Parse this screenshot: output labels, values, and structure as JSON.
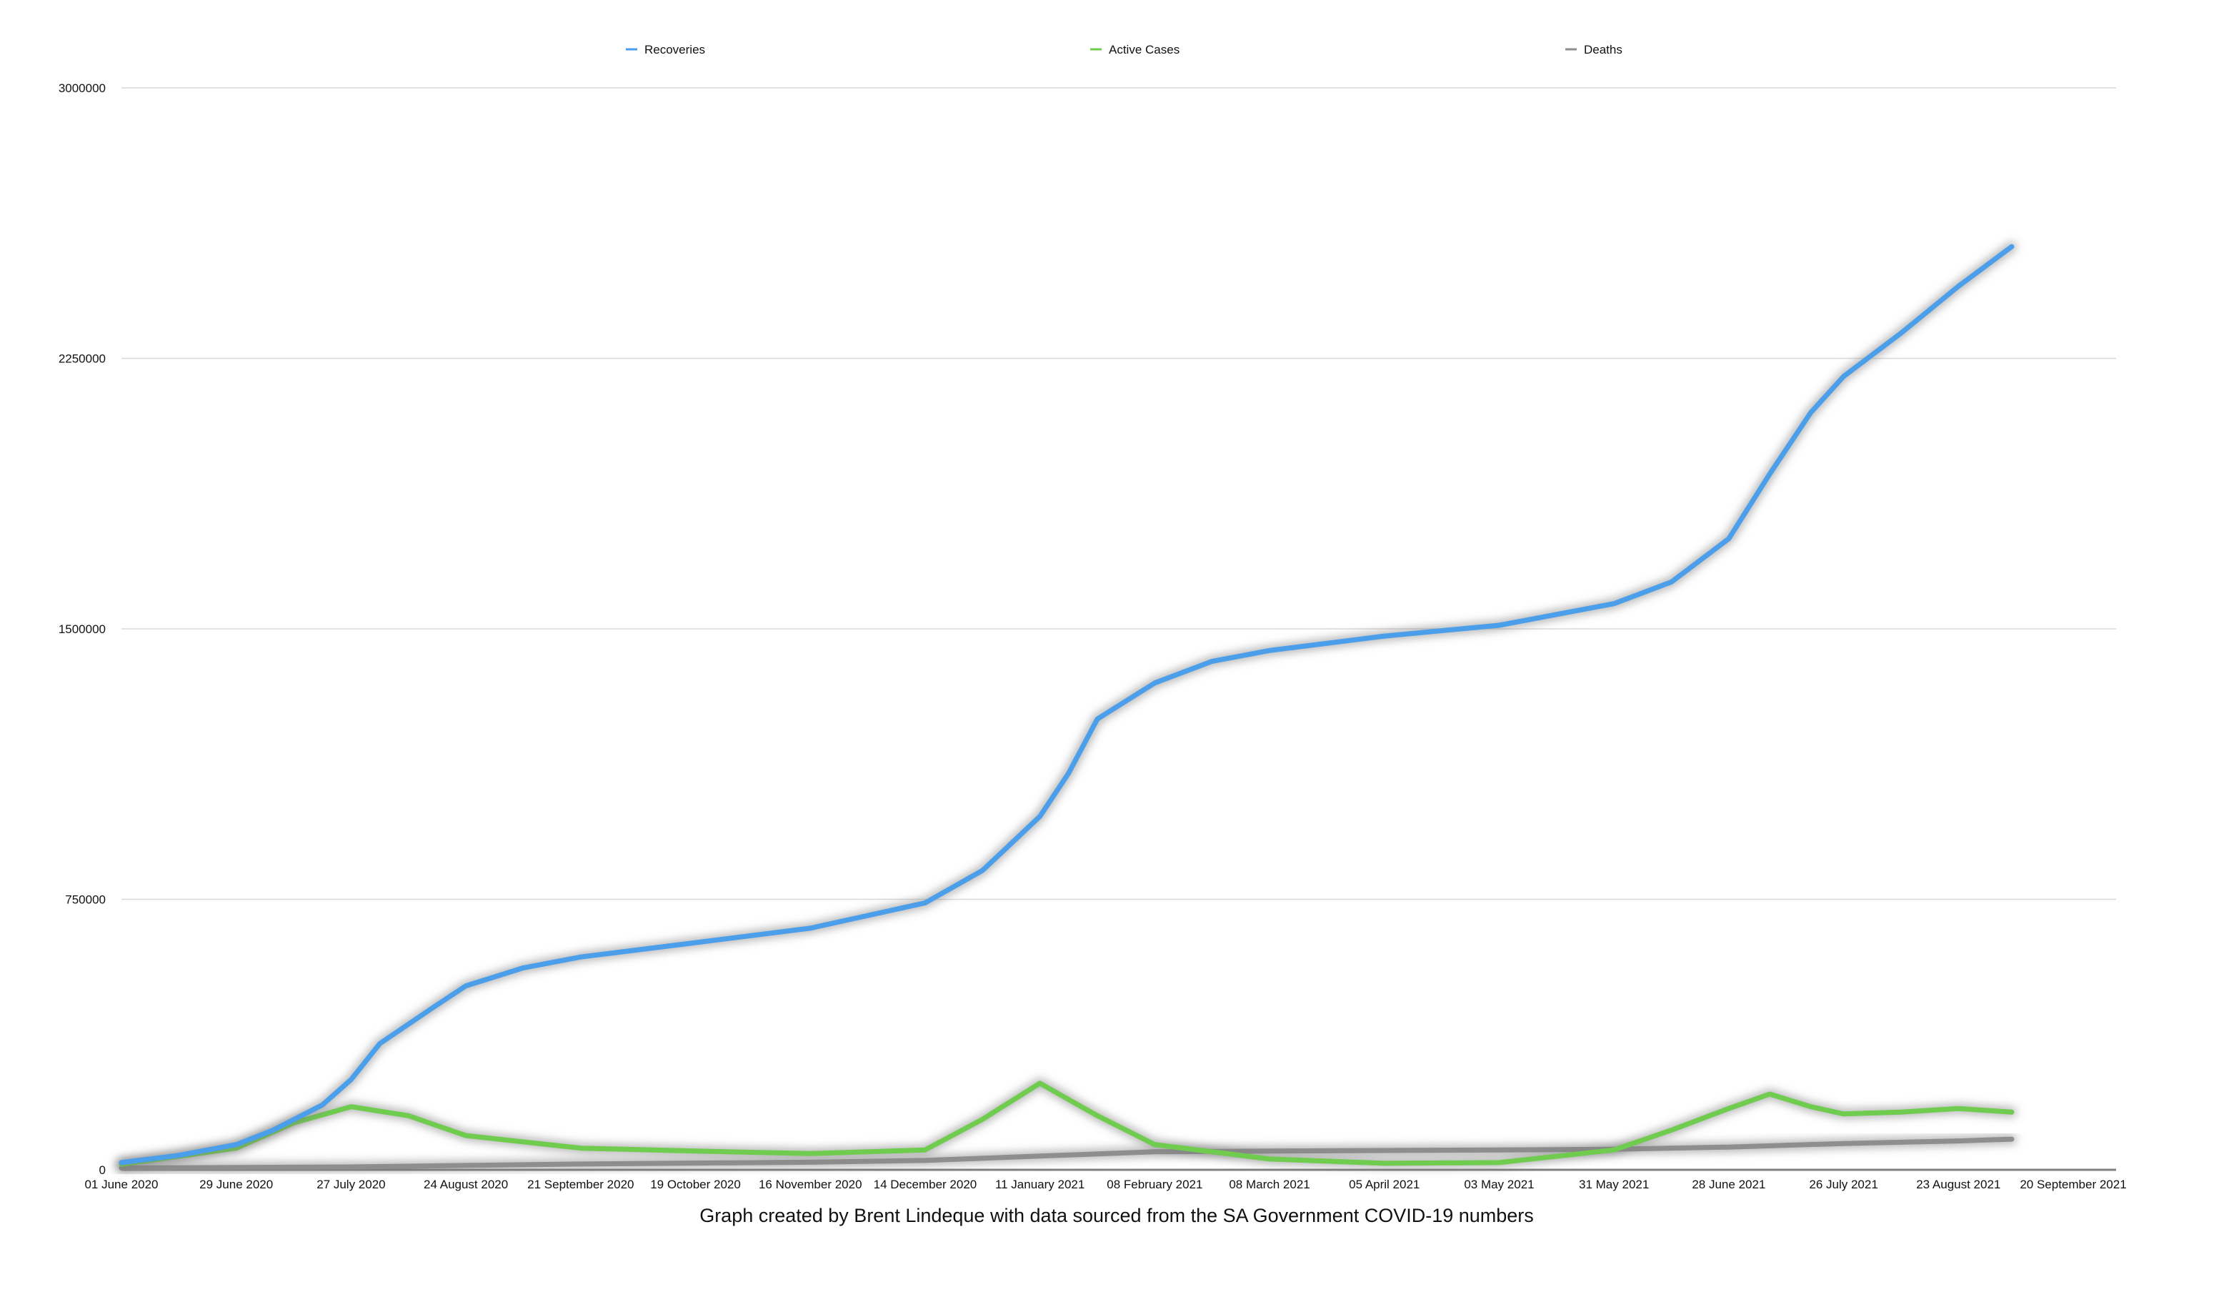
{
  "chart_data": {
    "type": "line",
    "title": "",
    "xlabel": "",
    "ylabel": "",
    "caption": "Graph created by Brent Lindeque with data sourced from the SA Government COVID-19 numbers",
    "ylim": [
      0,
      3000000
    ],
    "yticks": [
      "0",
      "750000",
      "1500000",
      "2250000",
      "3000000"
    ],
    "y_tick_values": [
      0,
      750000,
      1500000,
      2250000,
      3000000
    ],
    "xlim": [
      "2020-06-01",
      "2021-09-20"
    ],
    "x_tick_labels": [
      "01 June 2020",
      "29 June 2020",
      "27 July 2020",
      "24 August 2020",
      "21 September 2020",
      "19 October 2020",
      "16 November 2020",
      "14 December 2020",
      "11 January 2021",
      "08 February 2021",
      "08 March 2021",
      "05 April 2021",
      "03 May 2021",
      "31 May 2021",
      "28 June 2021",
      "26 July 2021",
      "23 August 2021",
      "20 September 2021"
    ],
    "x_tick_dates": [
      "2020-06-01",
      "2020-06-29",
      "2020-07-27",
      "2020-08-24",
      "2020-09-21",
      "2020-10-19",
      "2020-11-16",
      "2020-12-14",
      "2021-01-11",
      "2021-02-08",
      "2021-03-08",
      "2021-04-05",
      "2021-05-03",
      "2021-05-31",
      "2021-06-28",
      "2021-07-26",
      "2021-08-23",
      "2021-09-20"
    ],
    "grid": true,
    "legend_position": "top",
    "series": [
      {
        "name": "Recoveries",
        "color": "#4a9eea",
        "points": [
          [
            "2020-06-01",
            20000
          ],
          [
            "2020-06-15",
            40000
          ],
          [
            "2020-06-29",
            70000
          ],
          [
            "2020-07-08",
            110000
          ],
          [
            "2020-07-20",
            180000
          ],
          [
            "2020-07-27",
            250000
          ],
          [
            "2020-08-03",
            350000
          ],
          [
            "2020-08-16",
            450000
          ],
          [
            "2020-08-24",
            510000
          ],
          [
            "2020-09-07",
            560000
          ],
          [
            "2020-09-21",
            590000
          ],
          [
            "2020-10-19",
            630000
          ],
          [
            "2020-11-16",
            670000
          ],
          [
            "2020-12-14",
            740000
          ],
          [
            "2020-12-28",
            830000
          ],
          [
            "2021-01-11",
            980000
          ],
          [
            "2021-01-18",
            1100000
          ],
          [
            "2021-01-25",
            1250000
          ],
          [
            "2021-02-08",
            1350000
          ],
          [
            "2021-02-22",
            1410000
          ],
          [
            "2021-03-08",
            1440000
          ],
          [
            "2021-04-05",
            1480000
          ],
          [
            "2021-05-03",
            1510000
          ],
          [
            "2021-05-31",
            1570000
          ],
          [
            "2021-06-14",
            1630000
          ],
          [
            "2021-06-28",
            1750000
          ],
          [
            "2021-07-08",
            1930000
          ],
          [
            "2021-07-18",
            2100000
          ],
          [
            "2021-07-26",
            2200000
          ],
          [
            "2021-08-09",
            2320000
          ],
          [
            "2021-08-23",
            2450000
          ],
          [
            "2021-09-05",
            2560000
          ]
        ]
      },
      {
        "name": "Active Cases",
        "color": "#6fcc4f",
        "points": [
          [
            "2020-06-01",
            15000
          ],
          [
            "2020-06-29",
            60000
          ],
          [
            "2020-07-13",
            130000
          ],
          [
            "2020-07-27",
            175000
          ],
          [
            "2020-08-10",
            150000
          ],
          [
            "2020-08-24",
            95000
          ],
          [
            "2020-09-21",
            60000
          ],
          [
            "2020-10-19",
            52000
          ],
          [
            "2020-11-16",
            45000
          ],
          [
            "2020-12-14",
            55000
          ],
          [
            "2020-12-28",
            140000
          ],
          [
            "2021-01-11",
            240000
          ],
          [
            "2021-01-25",
            150000
          ],
          [
            "2021-02-08",
            70000
          ],
          [
            "2021-03-08",
            30000
          ],
          [
            "2021-04-05",
            18000
          ],
          [
            "2021-05-03",
            20000
          ],
          [
            "2021-05-31",
            55000
          ],
          [
            "2021-06-14",
            110000
          ],
          [
            "2021-06-28",
            170000
          ],
          [
            "2021-07-08",
            210000
          ],
          [
            "2021-07-18",
            175000
          ],
          [
            "2021-07-26",
            155000
          ],
          [
            "2021-08-09",
            160000
          ],
          [
            "2021-08-23",
            170000
          ],
          [
            "2021-09-05",
            160000
          ]
        ]
      },
      {
        "name": "Deaths",
        "color": "#8e8e8e",
        "points": [
          [
            "2020-06-01",
            5000
          ],
          [
            "2020-07-27",
            8000
          ],
          [
            "2020-09-21",
            16000
          ],
          [
            "2020-11-16",
            21000
          ],
          [
            "2020-12-14",
            26000
          ],
          [
            "2021-01-11",
            38000
          ],
          [
            "2021-02-08",
            50000
          ],
          [
            "2021-03-08",
            52000
          ],
          [
            "2021-05-03",
            55000
          ],
          [
            "2021-05-31",
            57000
          ],
          [
            "2021-06-28",
            63000
          ],
          [
            "2021-07-26",
            73000
          ],
          [
            "2021-08-23",
            80000
          ],
          [
            "2021-09-05",
            85000
          ]
        ]
      }
    ]
  }
}
